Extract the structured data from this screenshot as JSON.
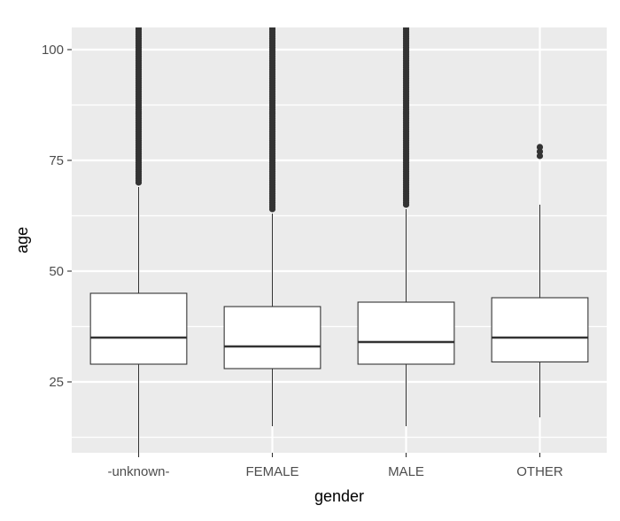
{
  "chart_data": {
    "type": "boxplot",
    "xlabel": "gender",
    "ylabel": "age",
    "categories": [
      "-unknown-",
      "FEMALE",
      "MALE",
      "OTHER"
    ],
    "ylim": [
      9,
      105
    ],
    "yticks": [
      25,
      50,
      75,
      100
    ],
    "grid": true,
    "legend": "none",
    "boxes": [
      {
        "category": "-unknown-",
        "whisker_low": 9,
        "q1": 29,
        "median": 35,
        "q3": 45,
        "whisker_high": 69,
        "outliers_from": 70,
        "outliers_to": 105
      },
      {
        "category": "FEMALE",
        "whisker_low": 15,
        "q1": 28,
        "median": 33,
        "q3": 42,
        "whisker_high": 63,
        "outliers_from": 64,
        "outliers_to": 105
      },
      {
        "category": "MALE",
        "whisker_low": 15,
        "q1": 29,
        "median": 34,
        "q3": 43,
        "whisker_high": 64,
        "outliers_from": 65,
        "outliers_to": 105
      },
      {
        "category": "OTHER",
        "whisker_low": 17,
        "q1": 29.5,
        "median": 35,
        "q3": 44,
        "whisker_high": 65,
        "outliers": [
          76,
          77,
          78
        ]
      }
    ],
    "colors": {
      "panel": "#ebebeb",
      "grid": "#ffffff",
      "box_fill": "#ffffff",
      "box_line": "#333333",
      "point": "#333333"
    }
  }
}
